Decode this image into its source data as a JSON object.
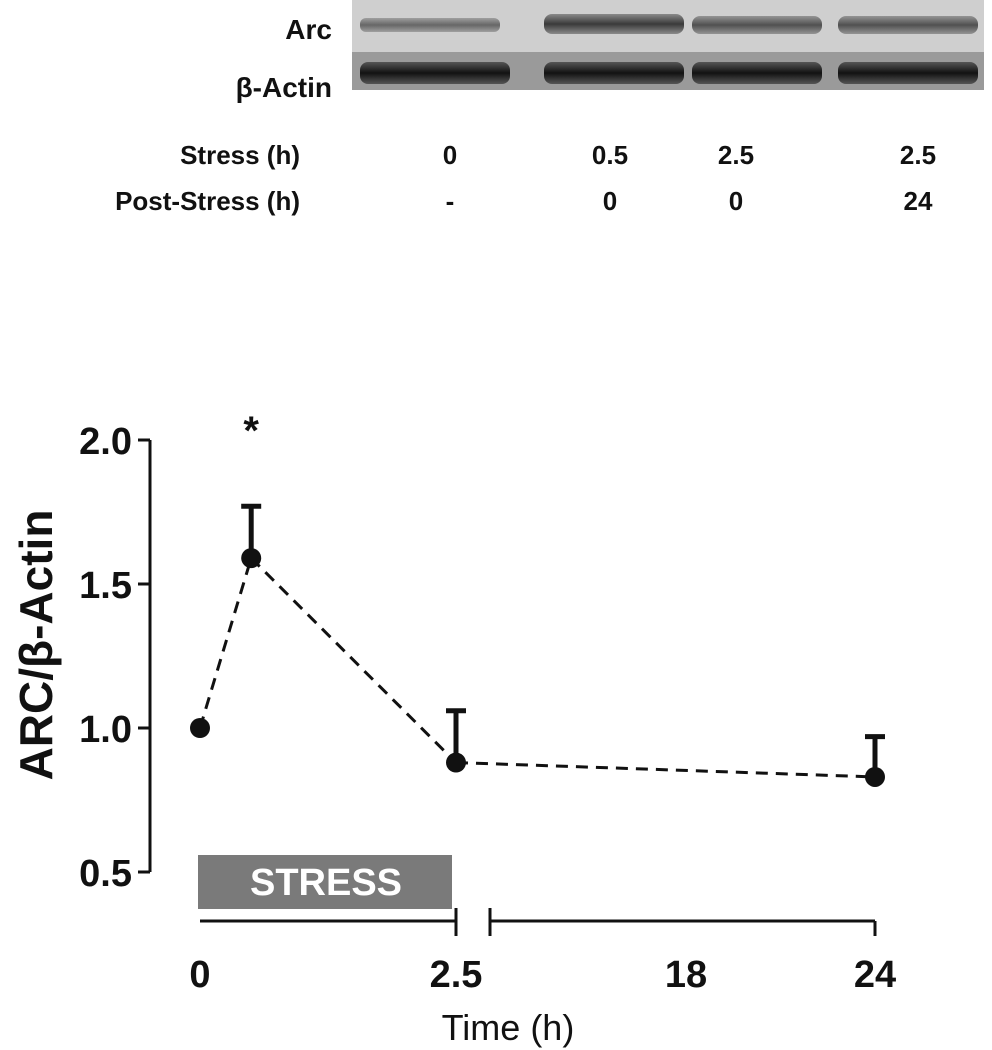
{
  "blot": {
    "bands": [
      {
        "label": "Arc"
      },
      {
        "label": "β-Actin"
      }
    ],
    "conditions": [
      {
        "label": "Stress (h)",
        "values": [
          "0",
          "0.5",
          "2.5",
          "2.5"
        ]
      },
      {
        "label": "Post-Stress (h)",
        "values": [
          "-",
          "0",
          "0",
          "24"
        ]
      }
    ]
  },
  "chart_data": {
    "type": "line",
    "ylabel": "ARC/β-Actin",
    "xlabel": "Time (h)",
    "ylim": [
      0.5,
      2.0
    ],
    "yticks": [
      "0.5",
      "1.0",
      "1.5",
      "2.0"
    ],
    "xticks": [
      "0",
      "2.5",
      "18",
      "24"
    ],
    "axis_break": "between 2.5 and 18",
    "line_style": "dashed",
    "series": [
      {
        "points": [
          {
            "x": 0,
            "y": 1.0,
            "err": 0
          },
          {
            "x": 0.5,
            "y": 1.59,
            "err": 0.18
          },
          {
            "x": 2.5,
            "y": 0.88,
            "err": 0.18
          },
          {
            "x": 24,
            "y": 0.83,
            "err": 0.14
          }
        ]
      }
    ],
    "annotations": [
      {
        "text": "*",
        "x": 0.5
      },
      {
        "text": "STRESS",
        "x_range": [
          0,
          2.5
        ]
      }
    ],
    "colors": {
      "marker": "#111111",
      "stress_bar": "#7a7a7a"
    }
  }
}
